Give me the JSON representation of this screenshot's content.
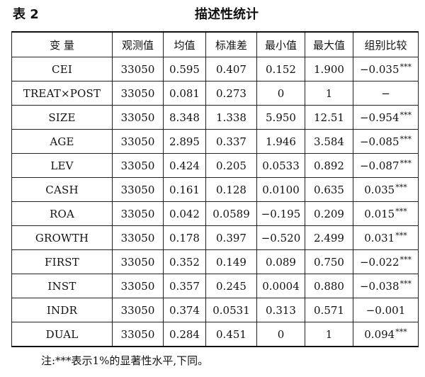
{
  "caption": {
    "number": "表 2",
    "title": "描述性统计"
  },
  "columns": [
    "变 量",
    "观测值",
    "均值",
    "标准差",
    "最小值",
    "最大值",
    "组别比较"
  ],
  "rows": [
    {
      "var": "CEI",
      "n": "33050",
      "mean": "0.595",
      "sd": "0.407",
      "min": "0.152",
      "max": "1.900",
      "diff": "−0.035",
      "sig": "***"
    },
    {
      "var": "TREAT×POST",
      "n": "33050",
      "mean": "0.081",
      "sd": "0.273",
      "min": "0",
      "max": "1",
      "diff": "−",
      "sig": ""
    },
    {
      "var": "SIZE",
      "n": "33050",
      "mean": "8.348",
      "sd": "1.338",
      "min": "5.950",
      "max": "12.51",
      "diff": "−0.954",
      "sig": "***"
    },
    {
      "var": "AGE",
      "n": "33050",
      "mean": "2.895",
      "sd": "0.337",
      "min": "1.946",
      "max": "3.584",
      "diff": "−0.085",
      "sig": "***"
    },
    {
      "var": "LEV",
      "n": "33050",
      "mean": "0.424",
      "sd": "0.205",
      "min": "0.0533",
      "max": "0.892",
      "diff": "−0.087",
      "sig": "***"
    },
    {
      "var": "CASH",
      "n": "33050",
      "mean": "0.161",
      "sd": "0.128",
      "min": "0.0100",
      "max": "0.635",
      "diff": "0.035",
      "sig": "***"
    },
    {
      "var": "ROA",
      "n": "33050",
      "mean": "0.042",
      "sd": "0.0589",
      "min": "−0.195",
      "max": "0.209",
      "diff": "0.015",
      "sig": "***"
    },
    {
      "var": "GROWTH",
      "n": "33050",
      "mean": "0.178",
      "sd": "0.397",
      "min": "−0.520",
      "max": "2.499",
      "diff": "0.031",
      "sig": "***"
    },
    {
      "var": "FIRST",
      "n": "33050",
      "mean": "0.352",
      "sd": "0.149",
      "min": "0.089",
      "max": "0.750",
      "diff": "−0.022",
      "sig": "***"
    },
    {
      "var": "INST",
      "n": "33050",
      "mean": "0.357",
      "sd": "0.245",
      "min": "0.0004",
      "max": "0.880",
      "diff": "−0.038",
      "sig": "***"
    },
    {
      "var": "INDR",
      "n": "33050",
      "mean": "0.374",
      "sd": "0.0531",
      "min": "0.313",
      "max": "0.571",
      "diff": "−0.001",
      "sig": ""
    },
    {
      "var": "DUAL",
      "n": "33050",
      "mean": "0.284",
      "sd": "0.451",
      "min": "0",
      "max": "1",
      "diff": "0.094",
      "sig": "***"
    }
  ],
  "note": "注:***表示1%的显著性水平,下同。"
}
